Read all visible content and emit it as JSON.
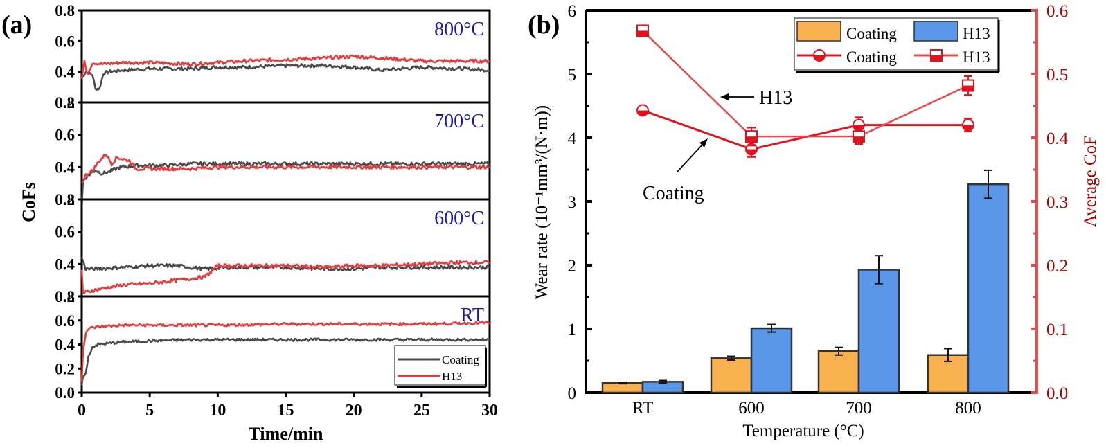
{
  "colors": {
    "coating_line": "#4a4a4a",
    "h13_line": "#e8393c",
    "temp_label": "#1a1aa6",
    "coating_bar": "#f9b04f",
    "h13_bar": "#5a97e8",
    "cof_axis": "#e84a4a",
    "cof_text": "#b00000",
    "cof_series": "#e0141e"
  },
  "chart_data": [
    {
      "panel_label": "(a)",
      "type": "line",
      "title": "",
      "xlabel": "Time/min",
      "ylabel": "CoFs",
      "xlim": [
        0,
        30
      ],
      "x_ticks": [
        "0",
        "5",
        "10",
        "15",
        "20",
        "25",
        "30"
      ],
      "legend": {
        "placement": "bottom-right (RT subplot)",
        "entries": [
          "Coating",
          "H13"
        ]
      },
      "subplots": [
        {
          "label": "800°C",
          "ylim": [
            0.2,
            0.8
          ],
          "y_ticks": [
            "0.2",
            "0.4",
            "0.6",
            "0.8"
          ],
          "series": [
            {
              "name": "Coating",
              "x": [
                0,
                0.3,
                0.8,
                1.0,
                1.3,
                1.6,
                2,
                3,
                5,
                8,
                10,
                12,
                15,
                18,
                20,
                22,
                25,
                28,
                30
              ],
              "y": [
                0.36,
                0.4,
                0.38,
                0.29,
                0.29,
                0.39,
                0.4,
                0.41,
                0.42,
                0.42,
                0.43,
                0.43,
                0.44,
                0.44,
                0.43,
                0.41,
                0.43,
                0.42,
                0.41
              ]
            },
            {
              "name": "H13",
              "x": [
                0,
                0.2,
                0.4,
                0.8,
                1.5,
                3,
                5,
                8,
                10,
                12,
                15,
                18,
                20,
                22,
                25,
                28,
                30
              ],
              "y": [
                0.36,
                0.47,
                0.38,
                0.46,
                0.45,
                0.46,
                0.46,
                0.45,
                0.46,
                0.47,
                0.48,
                0.49,
                0.5,
                0.49,
                0.47,
                0.47,
                0.47
              ]
            }
          ]
        },
        {
          "label": "700°C",
          "ylim": [
            0.2,
            0.8
          ],
          "y_ticks": [
            "0.2",
            "0.4",
            "0.6",
            "0.8"
          ],
          "series": [
            {
              "name": "Coating",
              "x": [
                0,
                0.1,
                0.5,
                1.0,
                1.5,
                2,
                2.5,
                3,
                4,
                6,
                8,
                10,
                15,
                20,
                25,
                30
              ],
              "y": [
                0.15,
                0.32,
                0.35,
                0.38,
                0.36,
                0.37,
                0.39,
                0.4,
                0.41,
                0.41,
                0.42,
                0.42,
                0.42,
                0.42,
                0.42,
                0.42
              ]
            },
            {
              "name": "H13",
              "x": [
                0,
                0.3,
                0.8,
                1.3,
                1.8,
                2.2,
                2.6,
                3.0,
                3.5,
                4,
                6,
                8,
                10,
                15,
                20,
                25,
                30
              ],
              "y": [
                0.3,
                0.35,
                0.38,
                0.44,
                0.48,
                0.42,
                0.46,
                0.45,
                0.44,
                0.39,
                0.39,
                0.39,
                0.4,
                0.4,
                0.4,
                0.4,
                0.4
              ]
            }
          ]
        },
        {
          "label": "600°C",
          "ylim": [
            0.2,
            0.8
          ],
          "y_ticks": [
            "0.2",
            "0.4",
            "0.6",
            "0.8"
          ],
          "series": [
            {
              "name": "Coating",
              "x": [
                0,
                0.3,
                1,
                3,
                5,
                7,
                9,
                11,
                13,
                15,
                18,
                20,
                22,
                25,
                28,
                30
              ],
              "y": [
                0.44,
                0.37,
                0.37,
                0.38,
                0.39,
                0.39,
                0.37,
                0.38,
                0.38,
                0.38,
                0.37,
                0.37,
                0.38,
                0.38,
                0.38,
                0.38
              ]
            },
            {
              "name": "H13",
              "x": [
                0,
                0.1,
                1,
                3,
                5,
                7,
                9,
                9.5,
                10,
                12,
                15,
                18,
                20,
                22,
                25,
                28,
                30
              ],
              "y": [
                0.36,
                0.22,
                0.24,
                0.27,
                0.28,
                0.3,
                0.32,
                0.35,
                0.39,
                0.39,
                0.39,
                0.38,
                0.39,
                0.39,
                0.4,
                0.41,
                0.41
              ]
            }
          ]
        },
        {
          "label": "RT",
          "ylim": [
            0.0,
            0.8
          ],
          "y_ticks": [
            "0.0",
            "0.2",
            "0.4",
            "0.6",
            "0.8"
          ],
          "series": [
            {
              "name": "Coating",
              "x": [
                0,
                0.1,
                0.3,
                0.5,
                0.8,
                1.2,
                2,
                3,
                5,
                8,
                10,
                15,
                20,
                25,
                30
              ],
              "y": [
                0.05,
                0.14,
                0.16,
                0.3,
                0.38,
                0.4,
                0.41,
                0.42,
                0.43,
                0.44,
                0.44,
                0.44,
                0.44,
                0.44,
                0.44
              ]
            },
            {
              "name": "H13",
              "x": [
                0,
                0.1,
                0.3,
                0.5,
                0.8,
                1.5,
                3,
                5,
                10,
                15,
                20,
                25,
                30
              ],
              "y": [
                0.1,
                0.35,
                0.5,
                0.53,
                0.54,
                0.55,
                0.56,
                0.56,
                0.56,
                0.57,
                0.57,
                0.57,
                0.58
              ]
            }
          ]
        }
      ]
    },
    {
      "panel_label": "(b)",
      "type": "bar",
      "title": "",
      "xlabel": "Temperature (°C)",
      "ylabel": "Wear rate (10⁻¹mm³/(N·m))",
      "ylabel_right": "Average CoF",
      "categories": [
        "RT",
        "600",
        "700",
        "800"
      ],
      "ylim": [
        0,
        6
      ],
      "y_ticks": [
        "0",
        "1",
        "2",
        "3",
        "4",
        "5",
        "6"
      ],
      "ylim_right": [
        0.0,
        0.6
      ],
      "y_ticks_right": [
        "0.0",
        "0.1",
        "0.2",
        "0.3",
        "0.4",
        "0.5",
        "0.6"
      ],
      "series": [
        {
          "name": "Coating",
          "kind": "bar",
          "axis": "left",
          "values": [
            0.15,
            0.54,
            0.65,
            0.59
          ],
          "errors": [
            0.01,
            0.03,
            0.06,
            0.1
          ]
        },
        {
          "name": "H13",
          "kind": "bar",
          "axis": "left",
          "values": [
            0.17,
            1.01,
            1.93,
            3.27
          ],
          "errors": [
            0.02,
            0.06,
            0.22,
            0.22
          ]
        },
        {
          "name": "Coating",
          "kind": "line",
          "marker": "half-filled circle",
          "axis": "right",
          "values": [
            0.443,
            0.382,
            0.42,
            0.42
          ],
          "errors": [
            0.005,
            0.012,
            0.012,
            0.01
          ]
        },
        {
          "name": "H13",
          "kind": "line",
          "marker": "half-filled square",
          "axis": "right",
          "values": [
            0.568,
            0.402,
            0.402,
            0.482
          ],
          "errors": [
            0.005,
            0.014,
            0.012,
            0.015
          ]
        }
      ],
      "annotations": [
        {
          "text": "H13",
          "arrow_to": "H13 CoF line"
        },
        {
          "text": "Coating",
          "arrow_to": "Coating CoF line"
        }
      ],
      "legend": {
        "placement": "top-right",
        "entries": [
          "Coating",
          "H13",
          "Coating",
          "H13"
        ]
      }
    }
  ]
}
